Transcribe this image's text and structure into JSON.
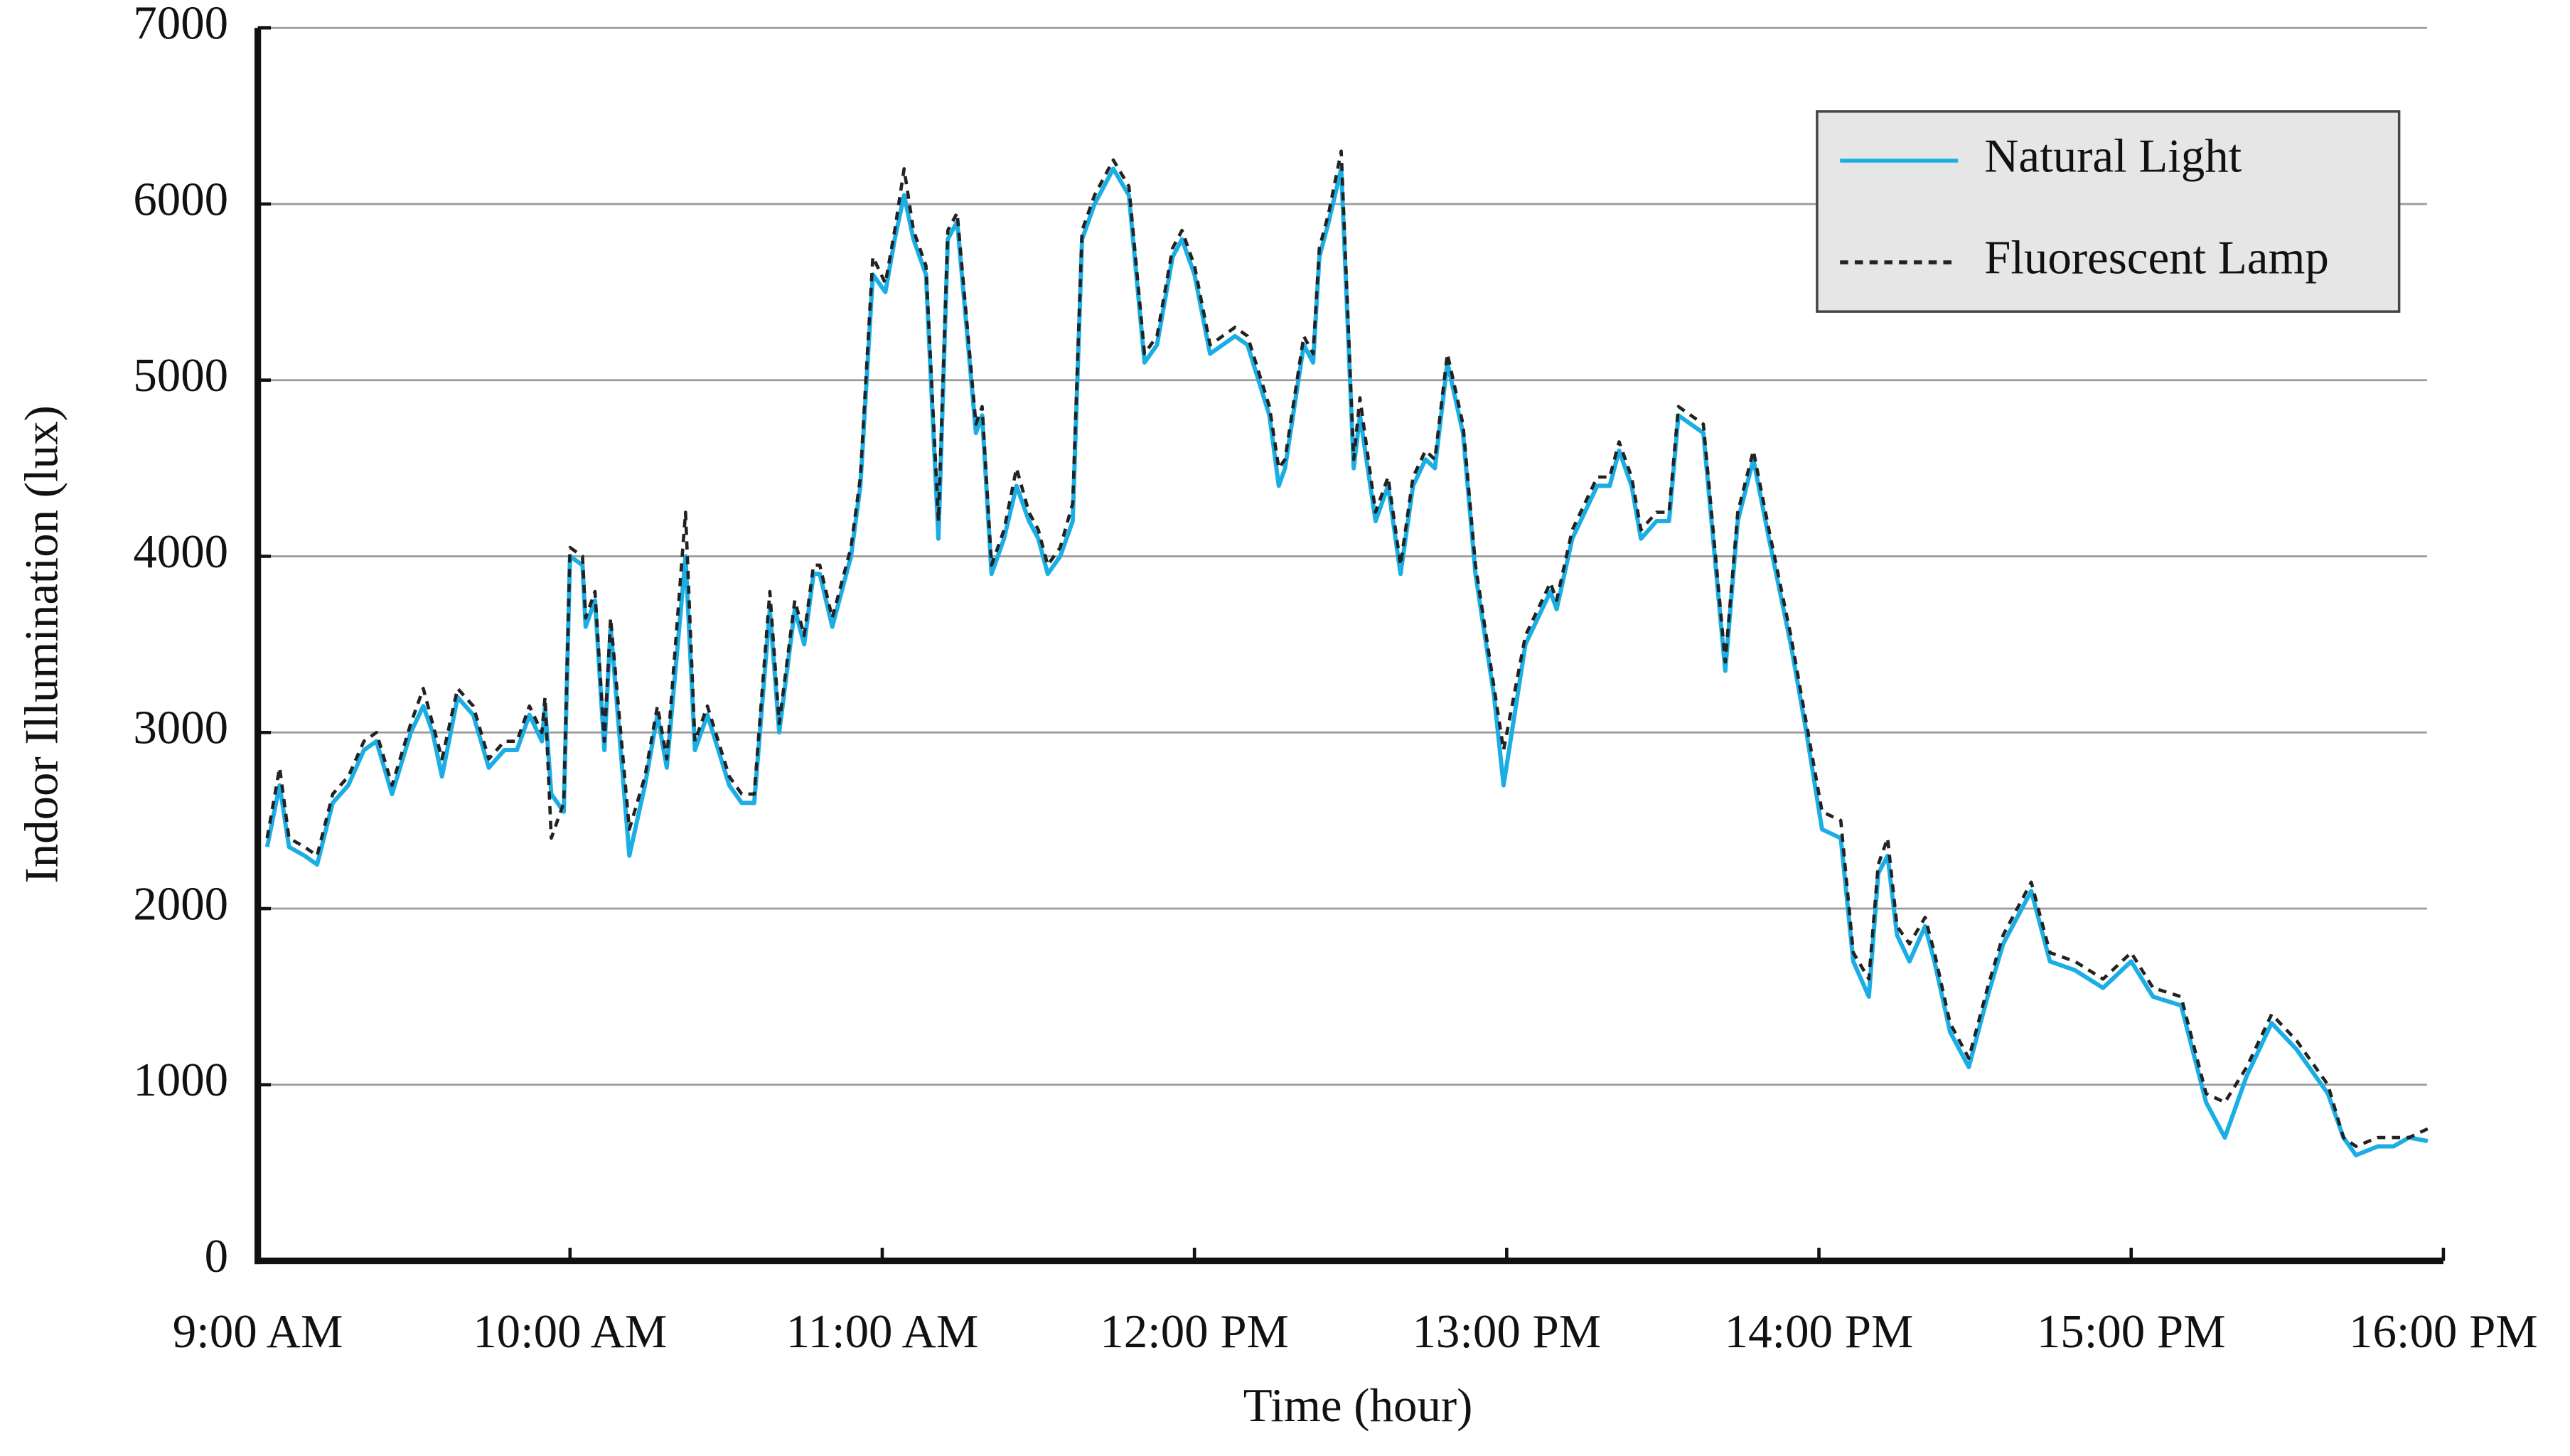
{
  "chart_data": {
    "type": "line",
    "xlabel": "Time (hour)",
    "ylabel": "Indoor Illumination (lux)",
    "xlim": [
      9,
      16
    ],
    "xticks": [
      {
        "value": 9,
        "label": "9:00 AM"
      },
      {
        "value": 10,
        "label": "10:00 AM"
      },
      {
        "value": 11,
        "label": "11:00 AM"
      },
      {
        "value": 12,
        "label": "12:00 PM"
      },
      {
        "value": 13,
        "label": "13:00 PM"
      },
      {
        "value": 14,
        "label": "14:00 PM"
      },
      {
        "value": 15,
        "label": "15:00 PM"
      },
      {
        "value": 16,
        "label": "16:00 PM"
      }
    ],
    "ylim": [
      0,
      7000
    ],
    "yticks": [
      0,
      1000,
      2000,
      3000,
      4000,
      5000,
      6000,
      7000
    ],
    "grid": true,
    "legend": "upper right",
    "x": [
      9.03,
      9.07,
      9.1,
      9.15,
      9.19,
      9.24,
      9.29,
      9.34,
      9.38,
      9.43,
      9.49,
      9.53,
      9.56,
      9.59,
      9.64,
      9.69,
      9.74,
      9.79,
      9.83,
      9.87,
      9.91,
      9.92,
      9.94,
      9.98,
      10.0,
      10.04,
      10.05,
      10.08,
      10.11,
      10.13,
      10.19,
      10.24,
      10.28,
      10.31,
      10.37,
      10.4,
      10.44,
      10.51,
      10.55,
      10.59,
      10.64,
      10.67,
      10.72,
      10.75,
      10.78,
      10.8,
      10.84,
      10.9,
      10.93,
      10.97,
      11.01,
      11.04,
      11.07,
      11.1,
      11.14,
      11.18,
      11.21,
      11.24,
      11.3,
      11.32,
      11.35,
      11.39,
      11.43,
      11.47,
      11.5,
      11.53,
      11.57,
      11.61,
      11.64,
      11.68,
      11.74,
      11.79,
      11.84,
      11.88,
      11.93,
      11.96,
      12.0,
      12.05,
      12.09,
      12.13,
      12.17,
      12.24,
      12.27,
      12.29,
      12.35,
      12.38,
      12.4,
      12.43,
      12.47,
      12.51,
      12.53,
      12.58,
      12.62,
      12.66,
      12.7,
      12.74,
      12.77,
      12.81,
      12.86,
      12.9,
      12.96,
      12.99,
      13.06,
      13.14,
      13.16,
      13.21,
      13.29,
      13.33,
      13.36,
      13.4,
      13.43,
      13.48,
      13.52,
      13.55,
      13.63,
      13.7,
      13.74,
      13.79,
      13.84,
      13.91,
      13.96,
      14.01,
      14.07,
      14.11,
      14.16,
      14.19,
      14.22,
      14.25,
      14.29,
      14.34,
      14.37,
      14.42,
      14.48,
      14.54,
      14.59,
      14.68,
      14.74,
      14.82,
      14.91,
      15.0,
      15.07,
      15.16,
      15.24,
      15.3,
      15.37,
      15.45,
      15.53,
      15.63,
      15.68,
      15.72,
      15.79,
      15.84,
      15.89,
      15.95
    ],
    "series": [
      {
        "name": "Natural Light",
        "color": "#1aaee5",
        "dash": "solid",
        "values": [
          2350,
          2700,
          2350,
          2300,
          2250,
          2600,
          2700,
          2900,
          2950,
          2650,
          3000,
          3150,
          3000,
          2750,
          3200,
          3100,
          2800,
          2900,
          2900,
          3100,
          2950,
          3150,
          2650,
          2550,
          4000,
          3950,
          3600,
          3750,
          2900,
          3600,
          2300,
          2700,
          3100,
          2800,
          4000,
          2900,
          3100,
          2700,
          2600,
          2600,
          3700,
          3000,
          3700,
          3500,
          3900,
          3900,
          3600,
          4000,
          4400,
          5600,
          5500,
          5800,
          6050,
          5800,
          5600,
          4100,
          5800,
          5900,
          4700,
          4800,
          3900,
          4100,
          4400,
          4200,
          4100,
          3900,
          4000,
          4200,
          5800,
          6000,
          6200,
          6050,
          5100,
          5200,
          5700,
          5800,
          5600,
          5150,
          5200,
          5250,
          5200,
          4800,
          4400,
          4500,
          5200,
          5100,
          5700,
          5900,
          6200,
          4500,
          4800,
          4200,
          4400,
          3900,
          4400,
          4550,
          4500,
          5100,
          4700,
          3900,
          3200,
          2700,
          3500,
          3800,
          3700,
          4100,
          4400,
          4400,
          4600,
          4400,
          4100,
          4200,
          4200,
          4800,
          4700,
          3350,
          4200,
          4550,
          4100,
          3500,
          3000,
          2450,
          2400,
          1700,
          1500,
          2200,
          2300,
          1850,
          1700,
          1900,
          1700,
          1300,
          1100,
          1500,
          1800,
          2100,
          1700,
          1650,
          1550,
          1700,
          1500,
          1450,
          900,
          700,
          1050,
          1350,
          1200,
          950,
          700,
          600,
          650,
          650,
          700,
          680
        ]
      },
      {
        "name": "Fluorescent Lamp",
        "color": "#222222",
        "dash": "dashed",
        "values": [
          2400,
          2800,
          2400,
          2350,
          2300,
          2650,
          2750,
          2950,
          3000,
          2700,
          3050,
          3250,
          3050,
          2850,
          3250,
          3150,
          2850,
          2950,
          2950,
          3150,
          3000,
          3200,
          2400,
          2600,
          4050,
          4000,
          3650,
          3800,
          2950,
          3650,
          2450,
          2750,
          3150,
          2850,
          4250,
          2950,
          3150,
          2750,
          2650,
          2650,
          3800,
          3050,
          3750,
          3550,
          3950,
          3950,
          3650,
          4050,
          4450,
          5700,
          5550,
          5850,
          6200,
          5850,
          5650,
          4200,
          5850,
          5950,
          4750,
          4850,
          3950,
          4150,
          4500,
          4250,
          4150,
          3950,
          4050,
          4300,
          5850,
          6050,
          6250,
          6100,
          5150,
          5250,
          5750,
          5850,
          5650,
          5200,
          5250,
          5300,
          5250,
          4850,
          4500,
          4550,
          5250,
          5150,
          5750,
          5950,
          6300,
          4550,
          4900,
          4250,
          4450,
          3950,
          4450,
          4600,
          4550,
          5150,
          4750,
          3950,
          3250,
          2900,
          3550,
          3850,
          3750,
          4150,
          4450,
          4450,
          4650,
          4450,
          4150,
          4250,
          4250,
          4850,
          4750,
          3400,
          4250,
          4600,
          4150,
          3550,
          3050,
          2550,
          2500,
          1750,
          1600,
          2250,
          2400,
          1900,
          1800,
          1950,
          1750,
          1350,
          1150,
          1550,
          1850,
          2150,
          1750,
          1700,
          1600,
          1750,
          1550,
          1500,
          950,
          900,
          1100,
          1400,
          1250,
          1000,
          700,
          650,
          700,
          700,
          700,
          750
        ]
      }
    ]
  }
}
